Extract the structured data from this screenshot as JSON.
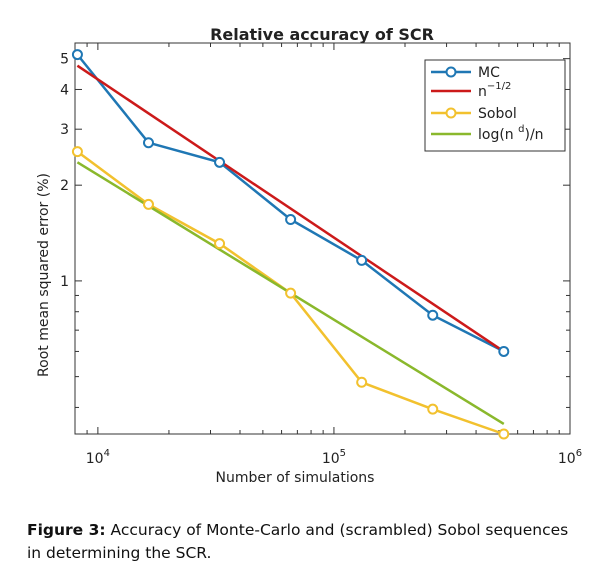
{
  "chart_data": {
    "type": "line",
    "title": "Relative accuracy of SCR",
    "xlabel": "Number of simulations",
    "ylabel": "Root mean squared error (%)",
    "xscale": "log",
    "yscale": "log",
    "xlim": [
      8000,
      1000000
    ],
    "ylim": [
      0.33,
      5.6
    ],
    "x_ticks": [
      {
        "value": 10000,
        "base": "10",
        "exp": "4"
      },
      {
        "value": 100000,
        "base": "10",
        "exp": "5"
      },
      {
        "value": 1000000,
        "base": "10",
        "exp": "6"
      }
    ],
    "y_ticks": [
      {
        "value": 1,
        "label": "1"
      },
      {
        "value": 2,
        "label": "2"
      },
      {
        "value": 3,
        "label": "3"
      },
      {
        "value": 4,
        "label": "4"
      },
      {
        "value": 5,
        "label": "5"
      }
    ],
    "grid": false,
    "legend_position": "top-right",
    "series": [
      {
        "name": "MC",
        "color": "#1f77b4",
        "marker": "circle",
        "x": [
          8192,
          16384,
          32768,
          65536,
          131072,
          262144,
          524288
        ],
        "values": [
          5.15,
          2.72,
          2.36,
          1.56,
          1.16,
          0.78,
          0.6
        ]
      },
      {
        "name": "n^-1/2",
        "legend_base": "n",
        "legend_sup": "−1/2",
        "color": "#cc1a1a",
        "marker": "none",
        "x": [
          8192,
          524288
        ],
        "values": [
          4.75,
          0.6
        ]
      },
      {
        "name": "Sobol",
        "color": "#f2c12e",
        "marker": "circle",
        "x": [
          8192,
          16384,
          32768,
          65536,
          131072,
          262144,
          524288
        ],
        "values": [
          2.55,
          1.74,
          1.31,
          0.915,
          0.48,
          0.395,
          0.33
        ]
      },
      {
        "name": "log(n^d)/n",
        "legend_pre": "log(n ",
        "legend_sup": "d",
        "legend_post": ")/n",
        "color": "#8ab82c",
        "marker": "none",
        "x": [
          8192,
          524288
        ],
        "values": [
          2.36,
          0.355
        ]
      }
    ]
  },
  "caption": {
    "label": "Figure 3:",
    "text": " Accuracy of Monte-Carlo and (scrambled) Sobol sequences in determining the SCR."
  }
}
